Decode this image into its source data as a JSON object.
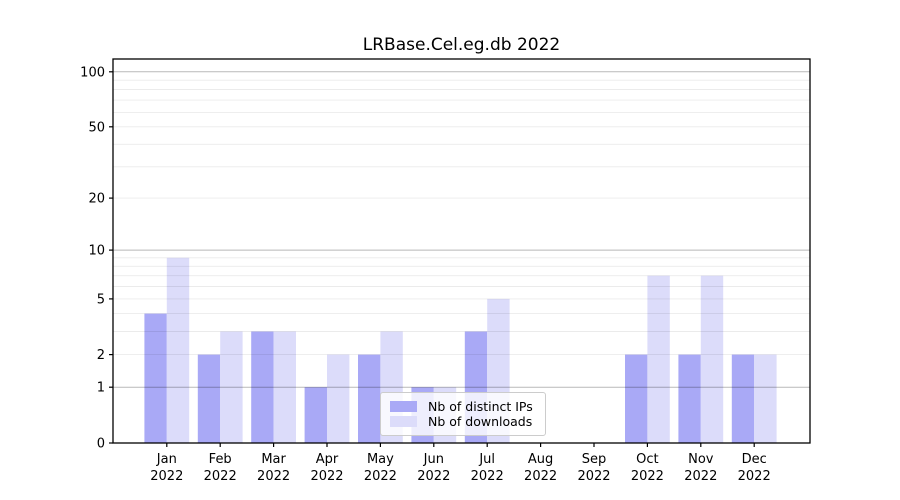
{
  "chart_data": {
    "type": "bar",
    "title": "LRBase.Cel.eg.db 2022",
    "year": "2022",
    "categories": [
      "Jan",
      "Feb",
      "Mar",
      "Apr",
      "May",
      "Jun",
      "Jul",
      "Aug",
      "Sep",
      "Oct",
      "Nov",
      "Dec"
    ],
    "series": [
      {
        "name": "Nb of distinct IPs",
        "color": "#a9a9f6",
        "values": [
          4,
          2,
          3,
          1,
          2,
          1,
          3,
          0,
          0,
          2,
          2,
          2
        ]
      },
      {
        "name": "Nb of downloads",
        "color": "#dcdcfa",
        "values": [
          9,
          3,
          3,
          2,
          3,
          1,
          5,
          0,
          0,
          7,
          7,
          2
        ]
      }
    ],
    "yscale": "log10(1+v)",
    "ylim": [
      0,
      117
    ],
    "y_tick_values": [
      0,
      1,
      2,
      5,
      10,
      20,
      50,
      100
    ],
    "y_major_gridlines": [
      1,
      10,
      100
    ],
    "y_minor_gridlines": [
      2,
      3,
      4,
      5,
      6,
      7,
      8,
      9,
      20,
      30,
      40,
      50,
      60,
      70,
      80,
      90
    ],
    "grid": "on",
    "legend_position": "lower center",
    "axis_color": "#000000",
    "major_grid_color": "rgba(0,0,0,0.28)",
    "minor_grid_color": "rgba(0,0,0,0.08)"
  }
}
